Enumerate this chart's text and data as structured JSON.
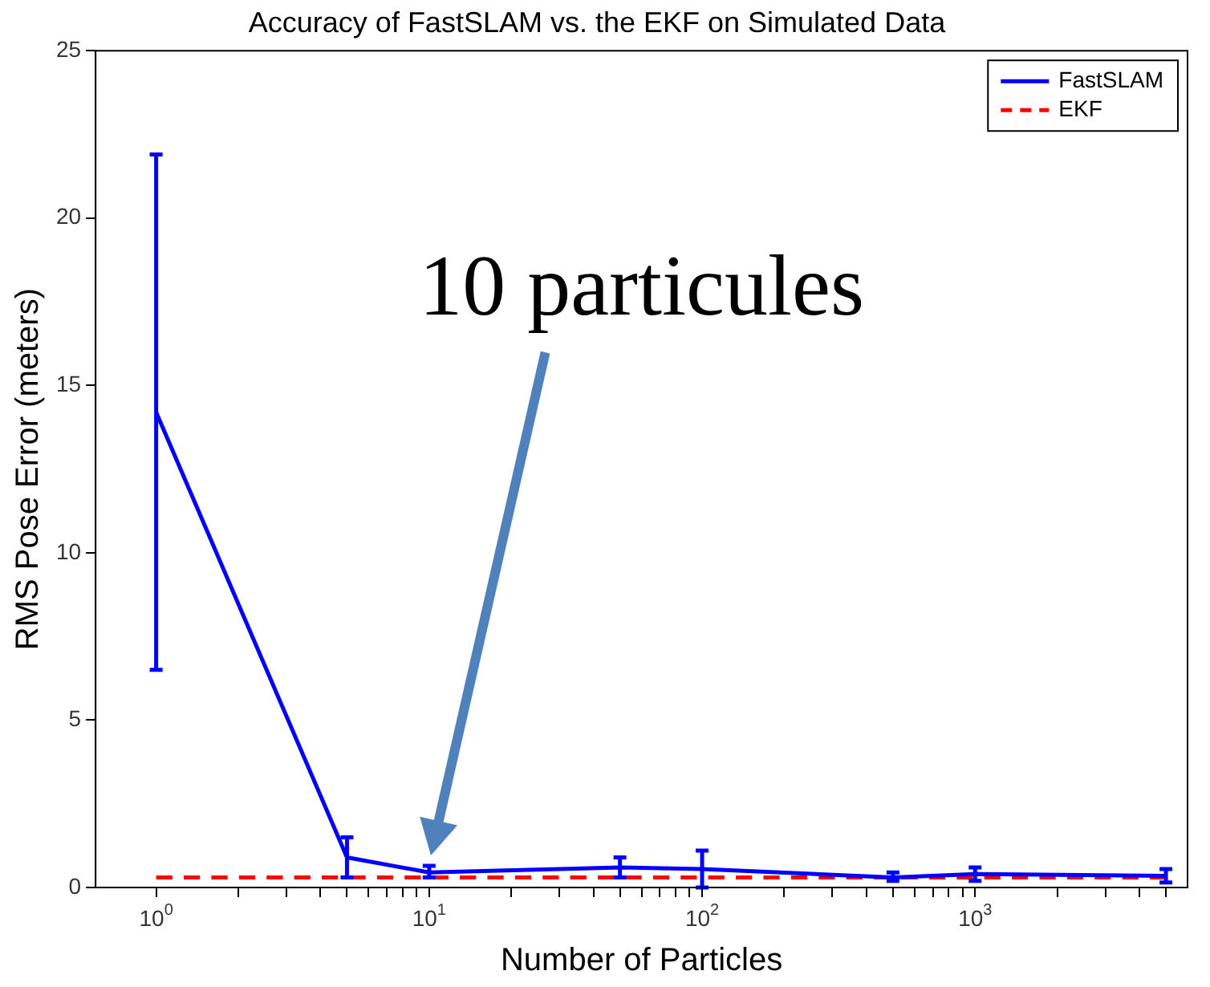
{
  "chart_data": {
    "type": "line",
    "title": "Accuracy of FastSLAM vs. the EKF on Simulated Data",
    "xlabel": "Number of Particles",
    "ylabel": "RMS Pose Error (meters)",
    "log": "x",
    "xlim": [
      0.6,
      6000
    ],
    "ylim": [
      0,
      25
    ],
    "xticks": [
      {
        "value": 1,
        "label": "10$^{0}$"
      },
      {
        "value": 2,
        "label": null
      },
      {
        "value": 3,
        "label": null
      },
      {
        "value": 4,
        "label": null
      },
      {
        "value": 5,
        "label": null
      },
      {
        "value": 6,
        "label": null
      },
      {
        "value": 7,
        "label": null
      },
      {
        "value": 8,
        "label": null
      },
      {
        "value": 9,
        "label": null
      },
      {
        "value": 10,
        "label": "10$^{1}$"
      },
      {
        "value": 20,
        "label": null
      },
      {
        "value": 30,
        "label": null
      },
      {
        "value": 40,
        "label": null
      },
      {
        "value": 50,
        "label": null
      },
      {
        "value": 60,
        "label": null
      },
      {
        "value": 70,
        "label": null
      },
      {
        "value": 80,
        "label": null
      },
      {
        "value": 90,
        "label": null
      },
      {
        "value": 100,
        "label": "10$^{2}$"
      },
      {
        "value": 200,
        "label": null
      },
      {
        "value": 300,
        "label": null
      },
      {
        "value": 400,
        "label": null
      },
      {
        "value": 500,
        "label": null
      },
      {
        "value": 600,
        "label": null
      },
      {
        "value": 700,
        "label": null
      },
      {
        "value": 800,
        "label": null
      },
      {
        "value": 900,
        "label": null
      },
      {
        "value": 1000,
        "label": "10$^{3}$"
      },
      {
        "value": 2000,
        "label": null
      },
      {
        "value": 3000,
        "label": null
      },
      {
        "value": 4000,
        "label": null
      },
      {
        "value": 5000,
        "label": null
      }
    ],
    "yticks": [
      0,
      5,
      10,
      15,
      20,
      25
    ],
    "grid": false,
    "legend": "top right",
    "series": [
      {
        "name": "FastSLAM",
        "color": "#0000ff",
        "line_style": "solid",
        "x": [
          1,
          5,
          10,
          50,
          100,
          500,
          1000,
          5000
        ],
        "values": [
          14.2,
          0.9,
          0.45,
          0.6,
          0.55,
          0.3,
          0.4,
          0.35
        ],
        "errors": [
          [
            6.5,
            21.9
          ],
          [
            0.3,
            1.5
          ],
          [
            0.3,
            0.65
          ],
          [
            0.3,
            0.9
          ],
          [
            0,
            1.1
          ],
          [
            0.2,
            0.45
          ],
          [
            0.2,
            0.6
          ],
          [
            0.15,
            0.55
          ]
        ]
      },
      {
        "name": "EKF",
        "color": "#ff0000",
        "line_style": "dashed",
        "x": [
          1,
          5000
        ],
        "values": [
          0.3,
          0.3
        ]
      }
    ],
    "annotations": [
      "10 particules"
    ]
  }
}
